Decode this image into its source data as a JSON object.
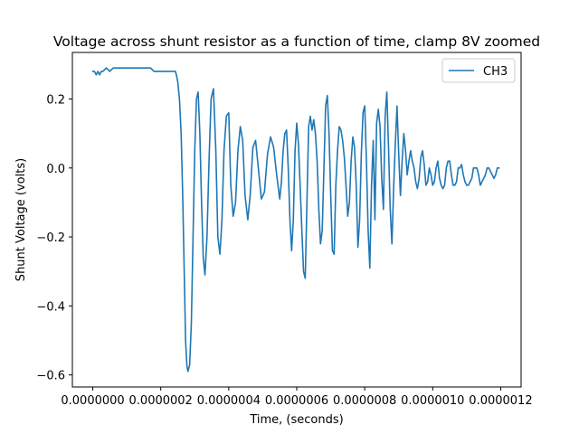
{
  "chart_data": {
    "type": "line",
    "title": "Voltage across shunt resistor as a function of time, clamp 8V zoomed",
    "xlabel": "Time, (seconds)",
    "ylabel": "Shunt Voltage (volts)",
    "xlim": [
      -6e-08,
      1.26e-06
    ],
    "ylim": [
      -0.635,
      0.335
    ],
    "grid": false,
    "legend_position": "upper right",
    "xticks": [
      0,
      2e-07,
      4e-07,
      6e-07,
      8e-07,
      1e-06,
      1.2e-06
    ],
    "xtick_labels": [
      "0.0000000",
      "0.0000002",
      "0.0000004",
      "0.0000006",
      "0.0000008",
      "0.0000010",
      "0.0000012"
    ],
    "yticks": [
      -0.6,
      -0.4,
      -0.2,
      0.0,
      0.2
    ],
    "ytick_labels": [
      "−0.6",
      "−0.4",
      "−0.2",
      "0.0",
      "0.2"
    ],
    "series": [
      {
        "name": "CH3",
        "color": "#1f77b4",
        "x": [
          0,
          5e-09,
          1e-08,
          1.5e-08,
          2e-08,
          2.5e-08,
          3e-08,
          4e-08,
          5e-08,
          6e-08,
          7e-08,
          8e-08,
          9e-08,
          1e-07,
          1.1e-07,
          1.2e-07,
          1.3e-07,
          1.4e-07,
          1.5e-07,
          1.6e-07,
          1.7e-07,
          1.8e-07,
          1.9e-07,
          2.43e-07,
          2.46e-07,
          2.5e-07,
          2.55e-07,
          2.6e-07,
          2.65e-07,
          2.7e-07,
          2.73e-07,
          2.77e-07,
          2.8e-07,
          2.85e-07,
          2.9e-07,
          2.95e-07,
          3e-07,
          3.05e-07,
          3.1e-07,
          3.15e-07,
          3.2e-07,
          3.25e-07,
          3.3e-07,
          3.36e-07,
          3.42e-07,
          3.48e-07,
          3.55e-07,
          3.62e-07,
          3.68e-07,
          3.74e-07,
          3.8e-07,
          3.86e-07,
          3.93e-07,
          4e-07,
          4.06e-07,
          4.13e-07,
          4.2e-07,
          4.27e-07,
          4.34e-07,
          4.41e-07,
          4.48e-07,
          4.56e-07,
          4.63e-07,
          4.71e-07,
          4.79e-07,
          4.87e-07,
          4.96e-07,
          5.05e-07,
          5.14e-07,
          5.23e-07,
          5.32e-07,
          5.41e-07,
          5.5e-07,
          5.55e-07,
          5.6e-07,
          5.65e-07,
          5.7e-07,
          5.75e-07,
          5.8e-07,
          5.85e-07,
          5.9e-07,
          5.95e-07,
          6e-07,
          6.05e-07,
          6.1e-07,
          6.15e-07,
          6.2e-07,
          6.25e-07,
          6.3e-07,
          6.35e-07,
          6.4e-07,
          6.45e-07,
          6.5e-07,
          6.55e-07,
          6.6e-07,
          6.65e-07,
          6.7e-07,
          6.75e-07,
          6.8e-07,
          6.85e-07,
          6.9e-07,
          6.95e-07,
          7e-07,
          7.05e-07,
          7.1e-07,
          7.15e-07,
          7.2e-07,
          7.25e-07,
          7.3e-07,
          7.35e-07,
          7.4e-07,
          7.45e-07,
          7.5e-07,
          7.55e-07,
          7.6e-07,
          7.65e-07,
          7.7e-07,
          7.75e-07,
          7.8e-07,
          7.85e-07,
          7.9e-07,
          7.95e-07,
          8e-07,
          8.05e-07,
          8.1e-07,
          8.15e-07,
          8.2e-07,
          8.25e-07,
          8.3e-07,
          8.35e-07,
          8.4e-07,
          8.45e-07,
          8.5e-07,
          8.55e-07,
          8.6e-07,
          8.65e-07,
          8.7e-07,
          8.75e-07,
          8.8e-07,
          8.85e-07,
          8.9e-07,
          8.95e-07,
          9e-07,
          9.05e-07,
          9.1e-07,
          9.15e-07,
          9.2e-07,
          9.25e-07,
          9.3e-07,
          9.35e-07,
          9.4e-07,
          9.45e-07,
          9.5e-07,
          9.55e-07,
          9.6e-07,
          9.65e-07,
          9.7e-07,
          9.75e-07,
          9.8e-07,
          9.85e-07,
          9.9e-07,
          9.95e-07,
          1e-06,
          1.005e-06,
          1.01e-06,
          1.015e-06,
          1.02e-06,
          1.025e-06,
          1.03e-06,
          1.035e-06,
          1.04e-06,
          1.045e-06,
          1.05e-06,
          1.055e-06,
          1.06e-06,
          1.065e-06,
          1.07e-06,
          1.075e-06,
          1.08e-06,
          1.085e-06,
          1.09e-06,
          1.095e-06,
          1.1e-06,
          1.105e-06,
          1.11e-06,
          1.115e-06,
          1.12e-06,
          1.125e-06,
          1.13e-06,
          1.135e-06,
          1.14e-06,
          1.145e-06,
          1.15e-06,
          1.155e-06,
          1.16e-06,
          1.165e-06,
          1.17e-06,
          1.175e-06,
          1.18e-06,
          1.185e-06,
          1.19e-06,
          1.195e-06
        ],
        "y": [
          0.28,
          0.28,
          0.27,
          0.28,
          0.27,
          0.28,
          0.28,
          0.29,
          0.28,
          0.29,
          0.29,
          0.29,
          0.29,
          0.29,
          0.29,
          0.29,
          0.29,
          0.29,
          0.29,
          0.29,
          0.29,
          0.28,
          0.28,
          0.28,
          0.27,
          0.25,
          0.2,
          0.1,
          -0.1,
          -0.35,
          -0.5,
          -0.575,
          -0.59,
          -0.57,
          -0.45,
          -0.2,
          0.05,
          0.2,
          0.22,
          0.1,
          -0.1,
          -0.26,
          -0.31,
          -0.2,
          0.02,
          0.2,
          0.23,
          0.05,
          -0.2,
          -0.25,
          -0.15,
          0.05,
          0.15,
          0.16,
          -0.05,
          -0.14,
          -0.1,
          0.05,
          0.12,
          0.08,
          -0.08,
          -0.15,
          -0.08,
          0.06,
          0.08,
          0.0,
          -0.09,
          -0.07,
          0.04,
          0.09,
          0.06,
          -0.02,
          -0.09,
          -0.04,
          0.05,
          0.1,
          0.11,
          0.0,
          -0.15,
          -0.24,
          -0.15,
          0.05,
          0.13,
          0.07,
          -0.05,
          -0.18,
          -0.3,
          -0.32,
          -0.1,
          0.12,
          0.15,
          0.11,
          0.14,
          0.1,
          0.02,
          -0.12,
          -0.22,
          -0.18,
          0.0,
          0.18,
          0.21,
          0.1,
          -0.08,
          -0.24,
          -0.25,
          -0.05,
          0.05,
          0.12,
          0.11,
          0.08,
          0.03,
          -0.05,
          -0.14,
          -0.1,
          0.02,
          0.09,
          0.06,
          -0.05,
          -0.23,
          -0.15,
          0.04,
          0.16,
          0.18,
          0.02,
          -0.18,
          -0.29,
          -0.05,
          0.08,
          -0.15,
          0.13,
          0.17,
          0.12,
          -0.03,
          -0.12,
          0.15,
          0.22,
          0.06,
          -0.12,
          -0.22,
          -0.06,
          0.07,
          0.18,
          0.04,
          -0.08,
          0.02,
          0.1,
          0.05,
          -0.02,
          0.02,
          0.05,
          0.02,
          0.0,
          -0.04,
          -0.06,
          -0.03,
          0.03,
          0.05,
          0.01,
          -0.05,
          -0.04,
          0.0,
          -0.02,
          -0.05,
          -0.04,
          0.0,
          0.02,
          -0.03,
          -0.05,
          -0.06,
          -0.05,
          0.0,
          0.02,
          0.02,
          -0.02,
          -0.05,
          -0.05,
          -0.04,
          0.0,
          0.0,
          0.01,
          -0.02,
          -0.04,
          -0.05,
          -0.05,
          -0.04,
          -0.03,
          0.0,
          0.0,
          0.0,
          -0.02,
          -0.05,
          -0.04,
          -0.03,
          -0.02,
          0.0,
          0.0,
          -0.01,
          -0.02,
          -0.03,
          -0.02,
          0.0,
          0.0
        ]
      }
    ]
  }
}
